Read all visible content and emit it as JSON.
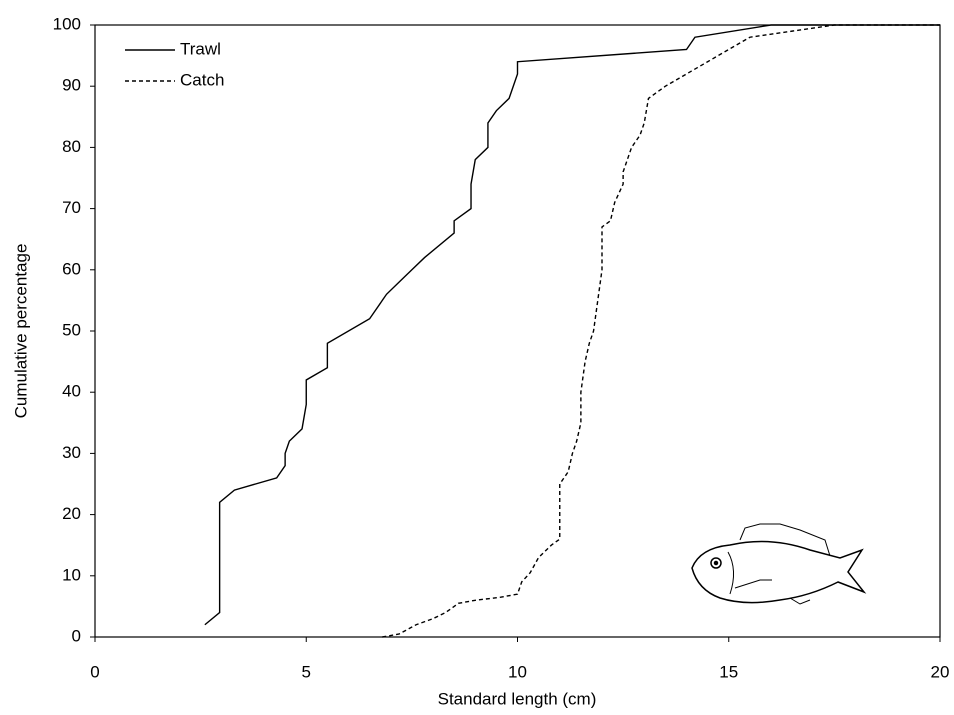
{
  "chart_data": {
    "type": "line",
    "xlabel": "Standard length (cm)",
    "ylabel": "Cumulative percentage",
    "xlim": [
      0,
      20
    ],
    "xticks": [
      0,
      5,
      10,
      15,
      20
    ],
    "ylim": [
      0,
      100
    ],
    "yticks": [
      0,
      10,
      20,
      30,
      40,
      50,
      60,
      70,
      80,
      90,
      100
    ],
    "legend": "upper left",
    "series": [
      {
        "name": "Trawl",
        "color": "#000000",
        "style": "solid",
        "x": [
          2.6,
          2.95,
          2.95,
          3.3,
          4.3,
          4.5,
          4.5,
          4.6,
          4.9,
          5.0,
          5.0,
          5.5,
          5.5,
          6.5,
          6.9,
          7.2,
          7.5,
          7.8,
          8.5,
          8.5,
          8.9,
          8.9,
          9.0,
          9.3,
          9.3,
          9.5,
          9.8,
          10.0,
          10.0,
          14.0,
          14.2,
          16.0,
          20.0
        ],
        "values": [
          2,
          4,
          22,
          24,
          26,
          28,
          30,
          32,
          34,
          38,
          42,
          44,
          48,
          52,
          56,
          58,
          60,
          62,
          66,
          68,
          70,
          74,
          78,
          80,
          84,
          86,
          88,
          92,
          94,
          96,
          98,
          100,
          100
        ]
      },
      {
        "name": "Catch",
        "color": "#000000",
        "style": "dashed",
        "x": [
          6.8,
          7.2,
          7.6,
          8.0,
          8.3,
          8.6,
          9.0,
          9.6,
          10.0,
          10.1,
          10.3,
          10.5,
          10.8,
          11.0,
          11.0,
          11.2,
          11.3,
          11.4,
          11.5,
          11.5,
          11.6,
          11.7,
          11.8,
          11.9,
          12.0,
          12.0,
          12.2,
          12.3,
          12.5,
          12.5,
          12.7,
          12.9,
          13.0,
          13.1,
          13.5,
          14.0,
          14.5,
          15.0,
          15.5,
          16.5,
          17.5,
          20.0
        ],
        "values": [
          0,
          0.5,
          2,
          3,
          4,
          5.5,
          6,
          6.5,
          7,
          9,
          10.5,
          13,
          15,
          16,
          25,
          27,
          30,
          32,
          35,
          40,
          45,
          48,
          50,
          55,
          60,
          67,
          68,
          71,
          74,
          76,
          80,
          82,
          84,
          88,
          90,
          92,
          94,
          96,
          98,
          99,
          100,
          100
        ]
      }
    ]
  }
}
